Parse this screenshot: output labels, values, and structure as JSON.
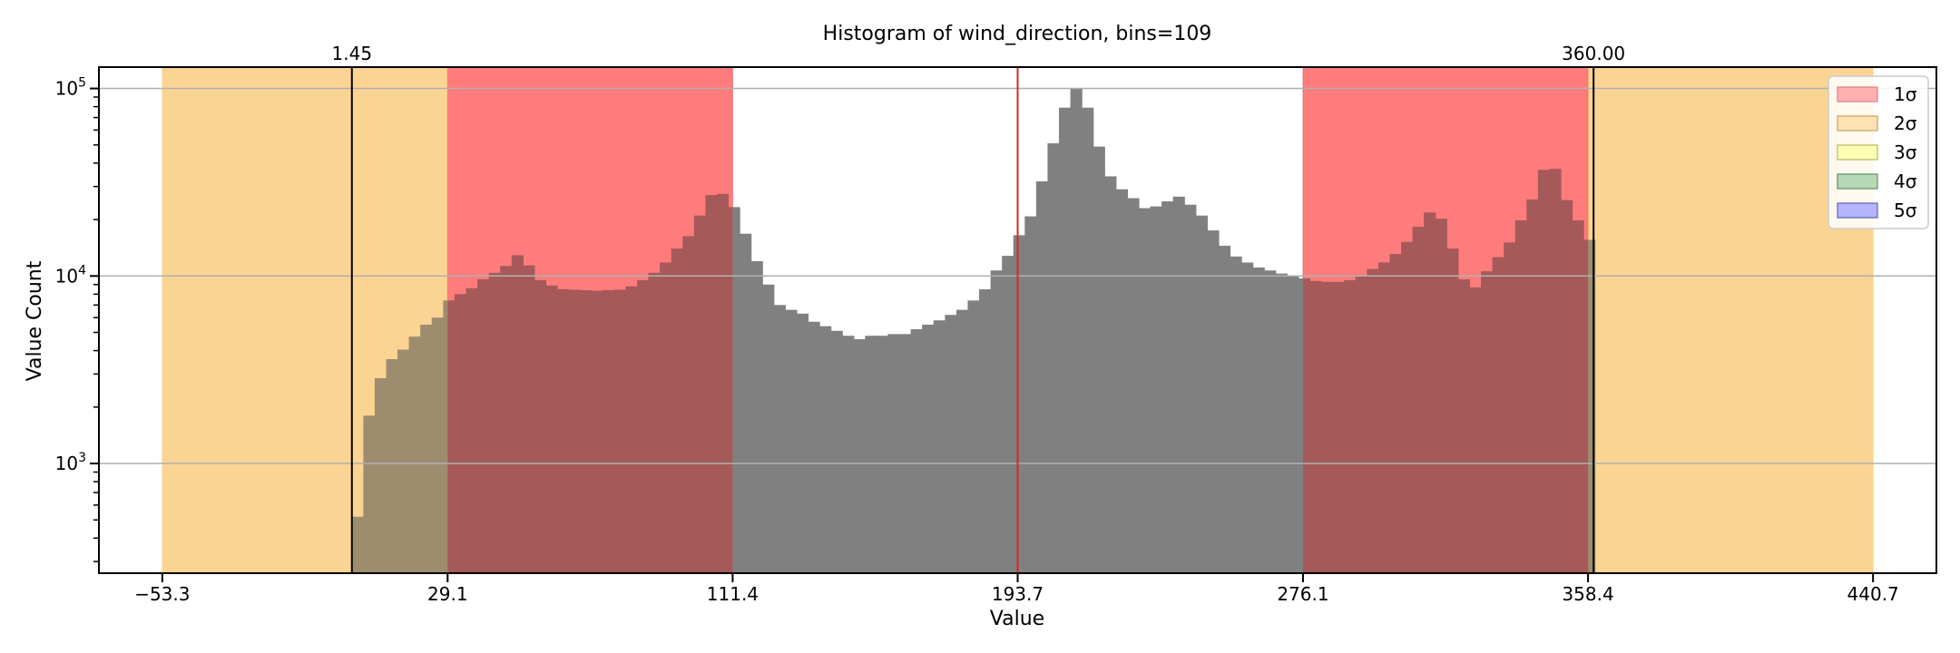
{
  "chart_data": {
    "type": "bar",
    "title": "Histogram of wind_direction, bins=109",
    "xlabel": "Value",
    "ylabel": "Value Count",
    "y_scale": "log",
    "xlim": [
      -71.6,
      459.0
    ],
    "ylim": [
      260,
      130000
    ],
    "grid": "y-major",
    "legend_position": "upper-right",
    "x_ticks": [
      "−53.3",
      "29.1",
      "111.4",
      "193.7",
      "276.1",
      "358.4",
      "440.7"
    ],
    "x_tick_values": [
      -53.3,
      29.1,
      111.4,
      193.7,
      276.1,
      358.4,
      440.7
    ],
    "y_ticks": [
      {
        "base": "10",
        "exp": "3",
        "value": 1000
      },
      {
        "base": "10",
        "exp": "4",
        "value": 10000
      },
      {
        "base": "10",
        "exp": "5",
        "value": 100000
      }
    ],
    "mean": 193.7,
    "min_line": {
      "value": 1.45,
      "label": "1.45"
    },
    "max_line": {
      "value": 360.0,
      "label": "360.00"
    },
    "bins": {
      "start": 1.45,
      "width": 3.2931,
      "count": 109
    },
    "values": [
      520,
      1800,
      2850,
      3600,
      4050,
      4750,
      5500,
      6000,
      7400,
      8000,
      8600,
      9600,
      10400,
      11300,
      12900,
      11400,
      9500,
      8900,
      8500,
      8450,
      8400,
      8350,
      8400,
      8450,
      8800,
      9500,
      10400,
      11800,
      14000,
      16300,
      21000,
      27000,
      27400,
      23300,
      16800,
      12000,
      9000,
      7000,
      6600,
      6300,
      5700,
      5400,
      5100,
      4800,
      4600,
      4800,
      4800,
      4900,
      4900,
      5200,
      5500,
      5800,
      6200,
      6600,
      7400,
      8500,
      10700,
      12800,
      16500,
      20800,
      32000,
      51000,
      79000,
      100000,
      79000,
      49000,
      34000,
      29000,
      26000,
      23000,
      23500,
      25000,
      26500,
      24000,
      21000,
      17500,
      14500,
      12700,
      11800,
      11100,
      10700,
      10300,
      10000,
      9700,
      9400,
      9300,
      9300,
      9500,
      10000,
      10900,
      11800,
      13100,
      15200,
      18300,
      21800,
      20200,
      14000,
      9600,
      8700,
      10600,
      12600,
      15100,
      19800,
      25600,
      36800,
      37300,
      25400,
      19800,
      15600
    ],
    "values_note": "",
    "bands": [
      {
        "sigma": 1,
        "ranges": [
          [
            29.1,
            111.4
          ],
          [
            276.1,
            358.4
          ]
        ],
        "color": "#ff0000",
        "alpha": 0.3
      },
      {
        "sigma": 2,
        "ranges": [
          [
            -53.3,
            29.1
          ],
          [
            358.4,
            440.7
          ]
        ],
        "color": "#f7b13b",
        "alpha": 0.4
      }
    ],
    "legend": [
      {
        "label": "1σ",
        "color": "#ffb0b0",
        "edge": "#e08080"
      },
      {
        "label": "2σ",
        "color": "#fde2b2",
        "edge": "#c9a060"
      },
      {
        "label": "3σ",
        "color": "#ffffb4",
        "edge": "#b8b860"
      },
      {
        "label": "4σ",
        "color": "#b4d9b4",
        "edge": "#609060"
      },
      {
        "label": "5σ",
        "color": "#b4b4ff",
        "edge": "#6060b0"
      }
    ],
    "colors": {
      "bar": "#808080",
      "bar_in_band": "#a05555",
      "mean_line": "#d62728",
      "minmax_line": "#000000",
      "grid": "#b0b0b0"
    }
  }
}
